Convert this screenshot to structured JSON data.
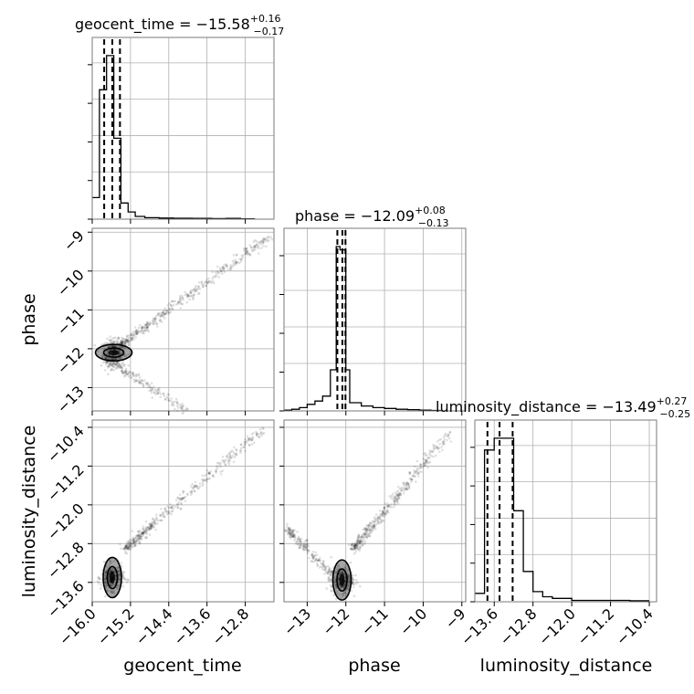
{
  "chart_data": {
    "type": "corner",
    "parameters": [
      {
        "name": "geocent_time",
        "median": "−15.58",
        "plus": "+0.16",
        "minus": "−0.17",
        "range": [
          -16.0,
          -12.2
        ],
        "ticks": [
          -16.0,
          -15.2,
          -14.4,
          -13.6,
          -12.8
        ],
        "tick_labels": [
          "−16.0",
          "−15.2",
          "−14.4",
          "−13.6",
          "−12.8"
        ]
      },
      {
        "name": "phase",
        "median": "−12.09",
        "plus": "+0.08",
        "minus": "−0.13",
        "range": [
          -13.6,
          -8.9
        ],
        "ticks": [
          -13,
          -12,
          -11,
          -10,
          -9
        ],
        "tick_labels": [
          "−13",
          "−12",
          "−11",
          "−10",
          "−9"
        ]
      },
      {
        "name": "luminosity_distance",
        "median": "−13.49",
        "plus": "+0.27",
        "minus": "−0.25",
        "range": [
          -14.0,
          -10.25
        ],
        "ticks": [
          -13.6,
          -12.8,
          -12.0,
          -11.2,
          -10.4
        ],
        "tick_labels": [
          "−13.6",
          "−12.8",
          "−12.0",
          "−11.2",
          "−10.4"
        ]
      }
    ],
    "histograms": [
      {
        "param": "geocent_time",
        "edges": [
          -16.0,
          -15.85,
          -15.7,
          -15.55,
          -15.4,
          -15.25,
          -15.1,
          -14.9,
          -14.6,
          -14.3,
          -13.9,
          -13.5,
          -13.2,
          -12.9,
          -12.6
        ],
        "counts": [
          0.12,
          0.72,
          0.91,
          0.45,
          0.09,
          0.04,
          0.015,
          0.008,
          0.006,
          0.005,
          0.004,
          0.003,
          0.004,
          0.002
        ],
        "quantiles": [
          -15.75,
          -15.58,
          -15.42
        ]
      },
      {
        "param": "phase",
        "edges": [
          -13.6,
          -13.4,
          -13.2,
          -13.0,
          -12.8,
          -12.6,
          -12.4,
          -12.25,
          -12.15,
          -12.0,
          -11.9,
          -11.6,
          -11.3,
          -11.0,
          -10.7,
          -10.4,
          -10.1,
          -9.8,
          -9.5
        ],
        "counts": [
          0.005,
          0.01,
          0.02,
          0.04,
          0.06,
          0.09,
          0.25,
          1.0,
          0.98,
          0.25,
          0.05,
          0.03,
          0.02,
          0.015,
          0.01,
          0.008,
          0.005,
          0.003
        ],
        "quantiles": [
          -12.22,
          -12.09,
          -12.01
        ]
      },
      {
        "param": "luminosity_distance",
        "edges": [
          -14.0,
          -13.8,
          -13.6,
          -13.4,
          -13.2,
          -13.0,
          -12.8,
          -12.6,
          -12.4,
          -12.0,
          -11.6,
          -11.2,
          -10.8,
          -10.4
        ],
        "counts": [
          0.05,
          0.9,
          0.97,
          0.97,
          0.54,
          0.18,
          0.06,
          0.03,
          0.02,
          0.008,
          0.008,
          0.008,
          0.006
        ],
        "quantiles": [
          -13.74,
          -13.49,
          -13.22
        ]
      }
    ],
    "scatter": [
      {
        "x": "geocent_time",
        "y": "phase",
        "main_branch": {
          "x0": -15.4,
          "y0": -11.9,
          "x1": -12.3,
          "y1": -9.1
        },
        "lower_branch": {
          "x0": -15.7,
          "y0": -12.3,
          "x1": -14.0,
          "y1": -13.6
        },
        "contour_center": [
          -15.55,
          -12.1
        ]
      },
      {
        "x": "geocent_time",
        "y": "luminosity_distance",
        "main_branch": {
          "x0": -15.3,
          "y0": -12.9,
          "x1": -12.4,
          "y1": -10.4
        },
        "contour_center": [
          -15.58,
          -13.5
        ]
      },
      {
        "x": "phase",
        "y": "luminosity_distance",
        "main_branch": {
          "x0": -11.8,
          "y0": -12.9,
          "x1": -9.3,
          "y1": -10.5
        },
        "lower_branch": {
          "x0": -13.5,
          "y0": -12.5,
          "x1": -12.3,
          "y1": -13.5
        },
        "contour_center": [
          -12.1,
          -13.55
        ]
      }
    ],
    "titles": {
      "diag_0": "geocent_time = −15.58",
      "diag_1": "phase = −12.09",
      "diag_2": "luminosity_distance = −13.49"
    },
    "axis_labels": {
      "x0": "geocent_time",
      "x1": "phase",
      "x2": "luminosity_distance",
      "y1": "phase",
      "y2": "luminosity_distance"
    },
    "grid": true
  }
}
